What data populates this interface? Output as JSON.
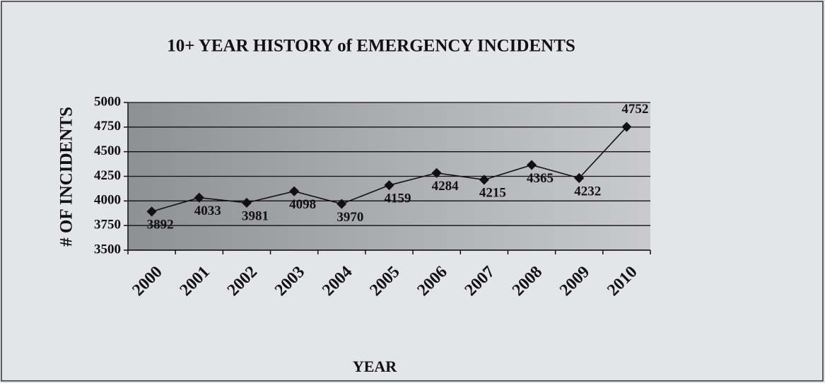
{
  "chart_data": {
    "type": "line",
    "title": "10+ YEAR HISTORY of EMERGENCY INCIDENTS",
    "x_label": "YEAR",
    "y_label": "# OF INCIDENTS",
    "categories": [
      "2000",
      "2001",
      "2002",
      "2003",
      "2004",
      "2005",
      "2006",
      "2007",
      "2008",
      "2009",
      "2010"
    ],
    "values": [
      3892,
      4033,
      3981,
      4098,
      3970,
      4159,
      4284,
      4215,
      4365,
      4232,
      4752
    ],
    "color": "#111111",
    "ylim": [
      3500,
      5000
    ],
    "yticks": [
      3500,
      3750,
      4000,
      4250,
      4500,
      4750,
      5000
    ],
    "grid": true
  }
}
